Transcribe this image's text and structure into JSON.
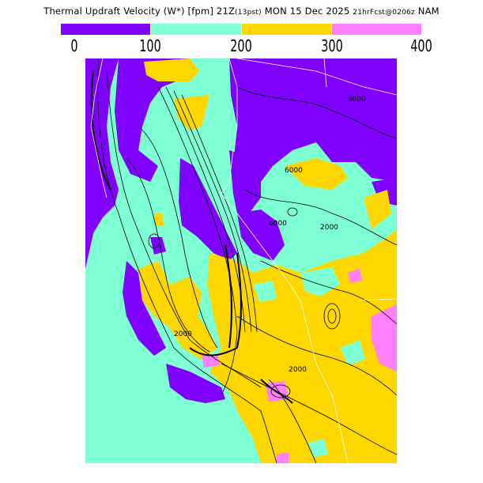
{
  "title": {
    "main": "Thermal Updraft Velocity (W*) [fpm] 21Z",
    "local_time": "(13pst)",
    "date": " MON 15 Dec 2025 ",
    "forecast": "21hrFcst@0206z",
    "model": " NAM"
  },
  "legend": {
    "bins": [
      {
        "from": 0,
        "to": 100,
        "color": "#7f00ff"
      },
      {
        "from": 100,
        "to": 200,
        "color": "#7fffd4"
      },
      {
        "from": 200,
        "to": 300,
        "color": "#ffd700"
      },
      {
        "from": 300,
        "to": 400,
        "color": "#ff80ff"
      }
    ],
    "ticks": [
      "0",
      "100",
      "200",
      "300",
      "400"
    ]
  },
  "map": {
    "region": "California / Nevada / Oregon",
    "contour_labels": [
      "6000",
      "6000",
      "2000",
      "2000",
      "2000",
      "6000"
    ],
    "colors": {
      "contour": "#000000",
      "borders": "#ffffff"
    }
  }
}
